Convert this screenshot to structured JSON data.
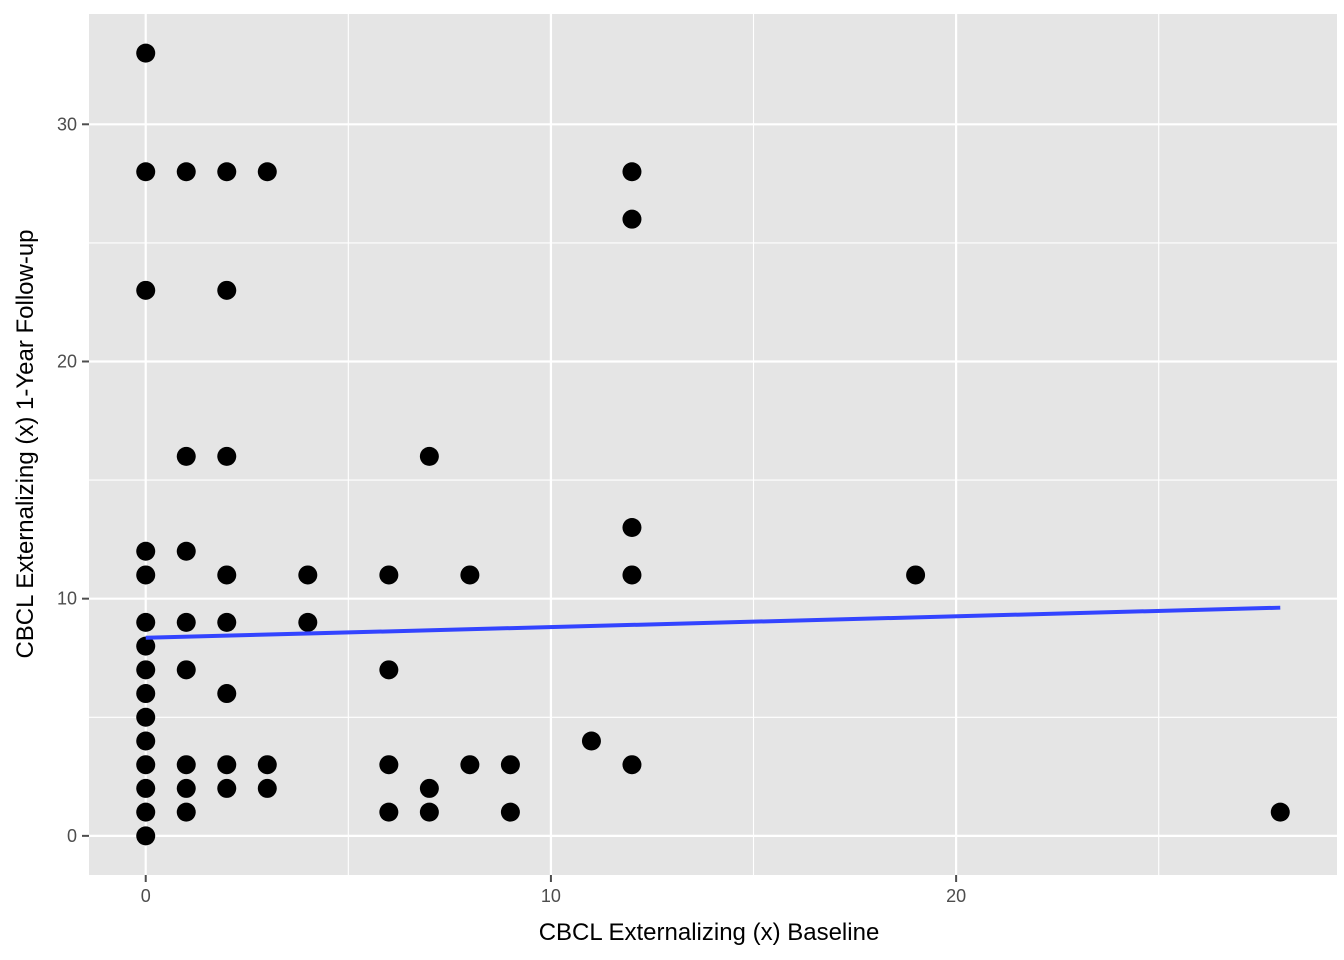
{
  "chart_data": {
    "type": "scatter",
    "title": "",
    "xlabel": "CBCL Externalizing (x) Baseline",
    "ylabel": "CBCL Externalizing (x) 1-Year Follow-up",
    "xlim": [
      -1.4,
      29.4
    ],
    "ylim": [
      -1.65,
      34.65
    ],
    "x_ticks": [
      0,
      10,
      20
    ],
    "y_ticks": [
      0,
      10,
      20,
      30
    ],
    "x_minor": [
      5,
      15,
      25
    ],
    "y_minor": [
      5,
      15,
      25
    ],
    "grid": true,
    "colors": {
      "panel": "#e5e5e5",
      "grid": "#ffffff",
      "points": "#000000",
      "fit_line": "#3344ff",
      "ticks": "#4d4d4d"
    },
    "points": [
      {
        "x": 0,
        "y": 33
      },
      {
        "x": 0,
        "y": 28
      },
      {
        "x": 0,
        "y": 23
      },
      {
        "x": 0,
        "y": 12
      },
      {
        "x": 0,
        "y": 11
      },
      {
        "x": 0,
        "y": 9
      },
      {
        "x": 0,
        "y": 8
      },
      {
        "x": 0,
        "y": 7
      },
      {
        "x": 0,
        "y": 6
      },
      {
        "x": 0,
        "y": 5
      },
      {
        "x": 0,
        "y": 4
      },
      {
        "x": 0,
        "y": 3
      },
      {
        "x": 0,
        "y": 2
      },
      {
        "x": 0,
        "y": 1
      },
      {
        "x": 0,
        "y": 0
      },
      {
        "x": 1,
        "y": 28
      },
      {
        "x": 1,
        "y": 16
      },
      {
        "x": 1,
        "y": 12
      },
      {
        "x": 1,
        "y": 9
      },
      {
        "x": 1,
        "y": 7
      },
      {
        "x": 1,
        "y": 3
      },
      {
        "x": 1,
        "y": 2
      },
      {
        "x": 1,
        "y": 1
      },
      {
        "x": 2,
        "y": 28
      },
      {
        "x": 2,
        "y": 23
      },
      {
        "x": 2,
        "y": 16
      },
      {
        "x": 2,
        "y": 11
      },
      {
        "x": 2,
        "y": 9
      },
      {
        "x": 2,
        "y": 6
      },
      {
        "x": 2,
        "y": 3
      },
      {
        "x": 2,
        "y": 2
      },
      {
        "x": 3,
        "y": 28
      },
      {
        "x": 3,
        "y": 3
      },
      {
        "x": 3,
        "y": 2
      },
      {
        "x": 4,
        "y": 11
      },
      {
        "x": 4,
        "y": 9
      },
      {
        "x": 6,
        "y": 11
      },
      {
        "x": 6,
        "y": 7
      },
      {
        "x": 6,
        "y": 3
      },
      {
        "x": 6,
        "y": 1
      },
      {
        "x": 7,
        "y": 16
      },
      {
        "x": 7,
        "y": 2
      },
      {
        "x": 7,
        "y": 1
      },
      {
        "x": 8,
        "y": 11
      },
      {
        "x": 8,
        "y": 3
      },
      {
        "x": 9,
        "y": 3
      },
      {
        "x": 9,
        "y": 1
      },
      {
        "x": 11,
        "y": 4
      },
      {
        "x": 12,
        "y": 28
      },
      {
        "x": 12,
        "y": 26
      },
      {
        "x": 12,
        "y": 13
      },
      {
        "x": 12,
        "y": 11
      },
      {
        "x": 12,
        "y": 3
      },
      {
        "x": 19,
        "y": 11
      },
      {
        "x": 28,
        "y": 1
      }
    ],
    "fit_line": {
      "x": [
        0,
        28
      ],
      "y": [
        8.35,
        9.62
      ]
    }
  }
}
